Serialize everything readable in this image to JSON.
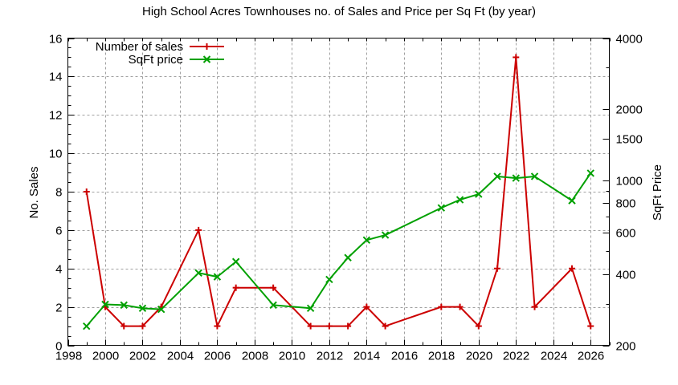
{
  "chart_data": {
    "type": "line",
    "title": "High School Acres Townhouses no. of Sales and Price per Sq Ft (by year)",
    "xlabel": "",
    "ylabel": "No. Sales",
    "y2label": "SqFt Price",
    "xlim": [
      1998,
      2027
    ],
    "ylim": [
      0,
      16
    ],
    "y2lim": [
      200,
      4000
    ],
    "y2scale": "log",
    "grid": true,
    "legend_position": "top-left",
    "x_ticks": [
      1998,
      2000,
      2002,
      2004,
      2006,
      2008,
      2010,
      2012,
      2014,
      2016,
      2018,
      2020,
      2022,
      2024,
      2026
    ],
    "y_ticks": [
      0,
      2,
      4,
      6,
      8,
      10,
      12,
      14,
      16
    ],
    "y2_ticks": [
      200,
      400,
      600,
      800,
      1000,
      1500,
      2000,
      4000
    ],
    "series": [
      {
        "name": "Number of sales",
        "axis": "y",
        "color": "#cc0000",
        "marker": "plus",
        "x": [
          1999,
          2000,
          2001,
          2002,
          2003,
          2005,
          2006,
          2007,
          2009,
          2011,
          2012,
          2013,
          2014,
          2015,
          2018,
          2019,
          2020,
          2021,
          2022,
          2023,
          2025,
          2026
        ],
        "values": [
          8,
          2,
          1,
          1,
          2,
          6,
          1,
          3,
          3,
          1,
          1,
          1,
          2,
          1,
          2,
          2,
          1,
          4,
          15,
          2,
          4,
          1
        ]
      },
      {
        "name": "SqFt price",
        "axis": "y2",
        "color": "#00a000",
        "marker": "x",
        "x": [
          1999,
          2000,
          2001,
          2002,
          2003,
          2005,
          2006,
          2007,
          2009,
          2011,
          2012,
          2013,
          2014,
          2015,
          2018,
          2019,
          2020,
          2021,
          2022,
          2023,
          2025,
          2026
        ],
        "values": [
          241,
          298,
          296,
          287,
          284,
          405,
          390,
          452,
          296,
          287,
          380,
          470,
          558,
          586,
          764,
          827,
          873,
          1038,
          1021,
          1038,
          820,
          1071
        ]
      }
    ]
  }
}
